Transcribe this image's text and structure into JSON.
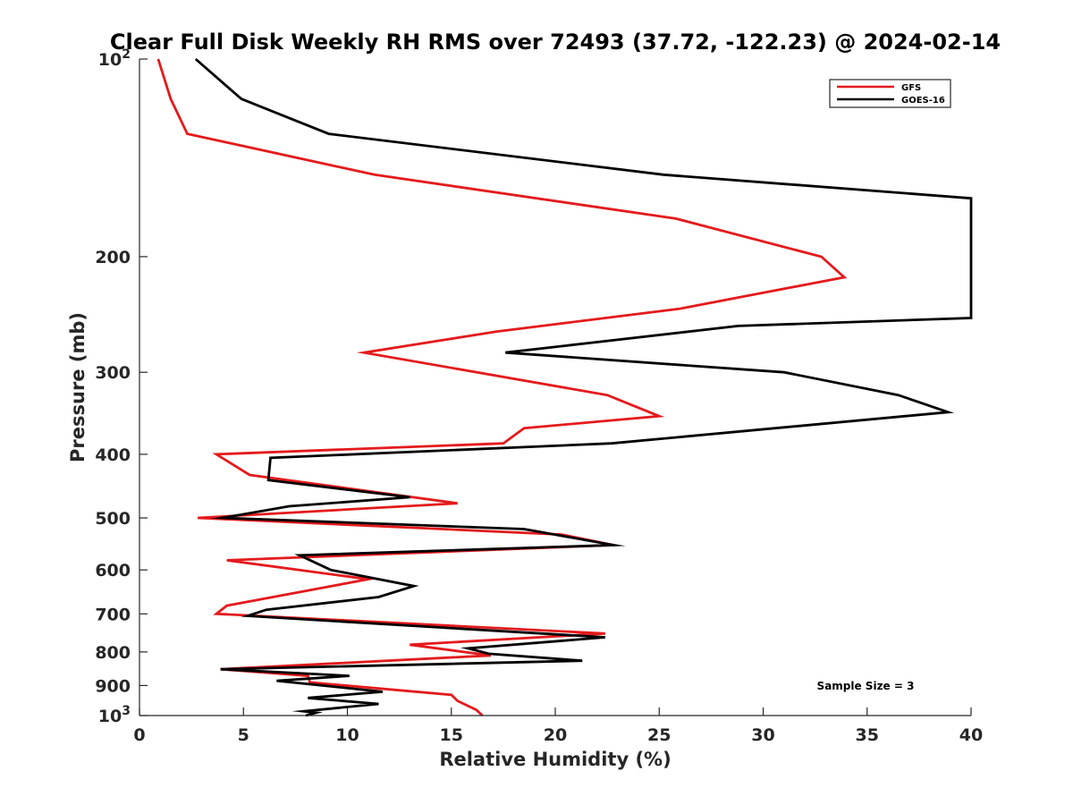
{
  "chart_data": {
    "type": "line",
    "title": "Clear Full Disk Weekly RH RMS over 72493 (37.72, -122.23) @ 2024-02-14",
    "xlabel": "Relative Humidity (%)",
    "ylabel": "Pressure (mb)",
    "xlim": [
      0,
      40
    ],
    "ylim": [
      100,
      1000
    ],
    "yscale": "log",
    "y_reversed": true,
    "x_ticks": [
      0,
      5,
      10,
      15,
      20,
      25,
      30,
      35,
      40
    ],
    "y_ticks": [
      {
        "value": 100,
        "label": "10",
        "sup": "2"
      },
      {
        "value": 200,
        "label": "200"
      },
      {
        "value": 300,
        "label": "300"
      },
      {
        "value": 400,
        "label": "400"
      },
      {
        "value": 500,
        "label": "500"
      },
      {
        "value": 600,
        "label": "600"
      },
      {
        "value": 700,
        "label": "700"
      },
      {
        "value": 800,
        "label": "800"
      },
      {
        "value": 900,
        "label": "900"
      },
      {
        "value": 1000,
        "label": "10",
        "sup": "3"
      }
    ],
    "grid": false,
    "legend_position": "top-right",
    "annotation": "Sample Size = 3",
    "series": [
      {
        "name": "GFS",
        "color": "#e41a1c",
        "points": [
          [
            0.9,
            100
          ],
          [
            1.5,
            115
          ],
          [
            2.3,
            130
          ],
          [
            11.3,
            150
          ],
          [
            25.8,
            175
          ],
          [
            32.8,
            200
          ],
          [
            33.9,
            215
          ],
          [
            26.0,
            240
          ],
          [
            17.2,
            260
          ],
          [
            10.8,
            280
          ],
          [
            22.5,
            325
          ],
          [
            25.0,
            350
          ],
          [
            18.5,
            365
          ],
          [
            17.5,
            385
          ],
          [
            3.7,
            400
          ],
          [
            5.3,
            430
          ],
          [
            15.3,
            475
          ],
          [
            2.8,
            500
          ],
          [
            20.3,
            530
          ],
          [
            22.8,
            550
          ],
          [
            4.2,
            580
          ],
          [
            11.0,
            620
          ],
          [
            4.2,
            680
          ],
          [
            3.7,
            700
          ],
          [
            22.4,
            750
          ],
          [
            13.0,
            780
          ],
          [
            15.6,
            800
          ],
          [
            16.9,
            810
          ],
          [
            3.9,
            850
          ],
          [
            8.1,
            870
          ],
          [
            8.2,
            890
          ],
          [
            15.0,
            930
          ],
          [
            15.3,
            950
          ],
          [
            16.2,
            980
          ],
          [
            16.5,
            1000
          ]
        ]
      },
      {
        "name": "GOES-16",
        "color": "#000000",
        "points": [
          [
            2.7,
            100
          ],
          [
            4.9,
            115
          ],
          [
            9.1,
            130
          ],
          [
            25.2,
            150
          ],
          [
            40.0,
            163
          ],
          [
            40.0,
            248
          ],
          [
            28.8,
            255
          ],
          [
            17.6,
            280
          ],
          [
            31.0,
            300
          ],
          [
            36.5,
            325
          ],
          [
            38.9,
            345
          ],
          [
            22.7,
            385
          ],
          [
            6.3,
            405
          ],
          [
            6.2,
            438
          ],
          [
            13.0,
            465
          ],
          [
            7.2,
            480
          ],
          [
            4.0,
            500
          ],
          [
            18.5,
            520
          ],
          [
            22.8,
            550
          ],
          [
            7.7,
            570
          ],
          [
            9.2,
            600
          ],
          [
            13.2,
            635
          ],
          [
            11.5,
            660
          ],
          [
            6.1,
            690
          ],
          [
            5.2,
            705
          ],
          [
            22.4,
            760
          ],
          [
            15.8,
            790
          ],
          [
            16.8,
            805
          ],
          [
            21.3,
            825
          ],
          [
            3.9,
            850
          ],
          [
            10.1,
            870
          ],
          [
            6.6,
            885
          ],
          [
            11.7,
            920
          ],
          [
            8.1,
            940
          ],
          [
            11.5,
            960
          ],
          [
            7.9,
            985
          ],
          [
            8.5,
            990
          ],
          [
            8.0,
            1000
          ]
        ]
      }
    ]
  }
}
